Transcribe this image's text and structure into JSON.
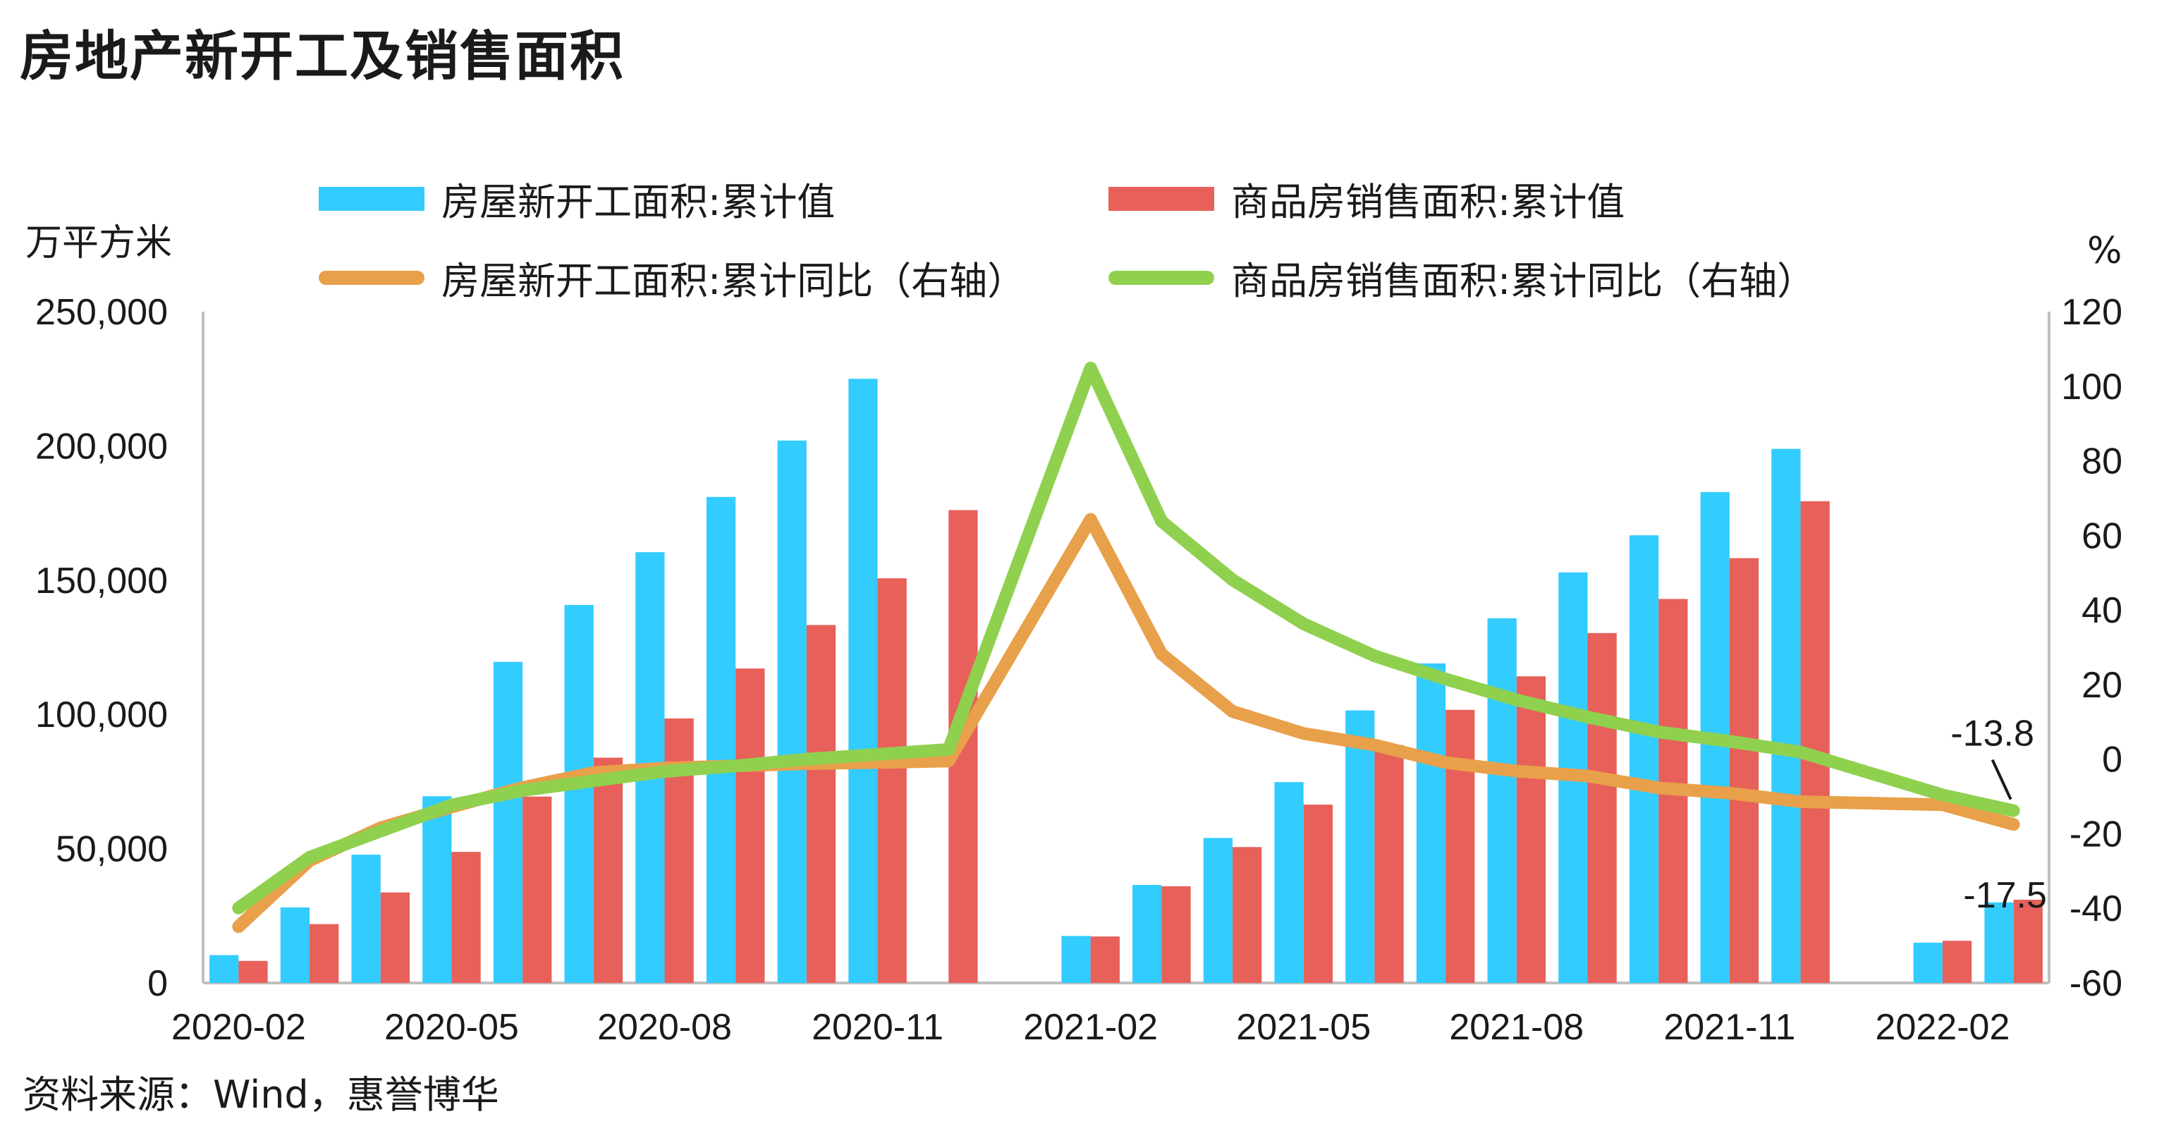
{
  "title": "房地产新开工及销售面积",
  "left_unit": "万平方米",
  "right_unit": "%",
  "source": "资料来源：Wind，惠誉博华",
  "colors": {
    "new_start_bar": "#33CCFF",
    "sales_bar": "#E8605A",
    "new_start_line": "#E8A04A",
    "sales_line": "#8FD14F",
    "axis": "#BFBFBF"
  },
  "legend": [
    {
      "label": "房屋新开工面积:累计值",
      "kind": "bar",
      "color": "#33CCFF"
    },
    {
      "label": "商品房销售面积:累计值",
      "kind": "bar",
      "color": "#E8605A"
    },
    {
      "label": "房屋新开工面积:累计同比（右轴）",
      "kind": "line",
      "color": "#E8A04A"
    },
    {
      "label": "商品房销售面积:累计同比（右轴）",
      "kind": "line",
      "color": "#8FD14F"
    }
  ],
  "chart_data": {
    "type": "bar",
    "title": "房地产新开工及销售面积",
    "categories": [
      "2020-02",
      "2020-03",
      "2020-04",
      "2020-05",
      "2020-06",
      "2020-07",
      "2020-08",
      "2020-09",
      "2020-10",
      "2020-11",
      "2020-12",
      "2021-01",
      "2021-02",
      "2021-03",
      "2021-04",
      "2021-05",
      "2021-06",
      "2021-07",
      "2021-08",
      "2021-09",
      "2021-10",
      "2021-11",
      "2021-12",
      "2022-01",
      "2022-02",
      "2022-03"
    ],
    "x_tick_labels": [
      "2020-02",
      "",
      "",
      "2020-05",
      "",
      "",
      "2020-08",
      "",
      "",
      "2020-11",
      "",
      "",
      "2021-02",
      "",
      "",
      "2021-05",
      "",
      "",
      "2021-08",
      "",
      "",
      "2021-11",
      "",
      "",
      "2022-02",
      ""
    ],
    "ylabel": "万平方米",
    "y2label": "%",
    "ylim": [
      0,
      250000
    ],
    "yticks": [
      "0",
      "50,000",
      "100,000",
      "150,000",
      "200,000",
      "250,000"
    ],
    "y2lim": [
      -60,
      120
    ],
    "y2ticks": [
      "-60",
      "-40",
      "-20",
      "0",
      "20",
      "40",
      "60",
      "80",
      "100",
      "120"
    ],
    "series": [
      {
        "name": "房屋新开工面积:累计值",
        "kind": "bar",
        "axis": "left",
        "values": [
          10370,
          28110,
          47770,
          69530,
          119580,
          140770,
          160430,
          181000,
          202000,
          225000,
          null,
          null,
          17500,
          36500,
          54000,
          74800,
          101500,
          119000,
          135800,
          152900,
          166700,
          182800,
          198900,
          null,
          15000,
          30000
        ]
      },
      {
        "name": "商品房销售面积:累计值",
        "kind": "bar",
        "axis": "left",
        "values": [
          8200,
          21900,
          33700,
          48800,
          69400,
          83900,
          98500,
          117100,
          133300,
          150700,
          176100,
          null,
          17300,
          36000,
          50600,
          66400,
          88600,
          101700,
          114200,
          130300,
          143000,
          158200,
          179400,
          null,
          15700,
          31000
        ]
      },
      {
        "name": "房屋新开工面积:累计同比（右轴）",
        "kind": "line",
        "axis": "right",
        "values": [
          -44.9,
          -27.2,
          -18.4,
          -12.8,
          -7.6,
          -3.6,
          -2.4,
          -1.8,
          -1.2,
          -0.9,
          -0.5,
          null,
          64.3,
          28.2,
          12.8,
          6.9,
          3.8,
          -0.9,
          -3.2,
          -4.5,
          -7.7,
          -9.1,
          -11.4,
          null,
          -12.2,
          -17.5
        ]
      },
      {
        "name": "商品房销售面积:累计同比（右轴）",
        "kind": "line",
        "axis": "right",
        "values": [
          -39.9,
          -26.3,
          -19.3,
          -12.3,
          -8.4,
          -5.8,
          -3.3,
          -1.8,
          0.0,
          1.3,
          2.6,
          null,
          104.9,
          63.8,
          48.1,
          36.3,
          27.7,
          21.5,
          15.9,
          11.3,
          7.3,
          4.8,
          1.9,
          null,
          -9.6,
          -13.8
        ]
      }
    ],
    "annotations": [
      {
        "text": "-13.8",
        "series": "商品房销售面积:累计同比（右轴）",
        "category": "2022-03"
      },
      {
        "text": "-17.5",
        "series": "房屋新开工面积:累计同比（右轴）",
        "category": "2022-03"
      }
    ],
    "grid": false,
    "legend_position": "top"
  }
}
